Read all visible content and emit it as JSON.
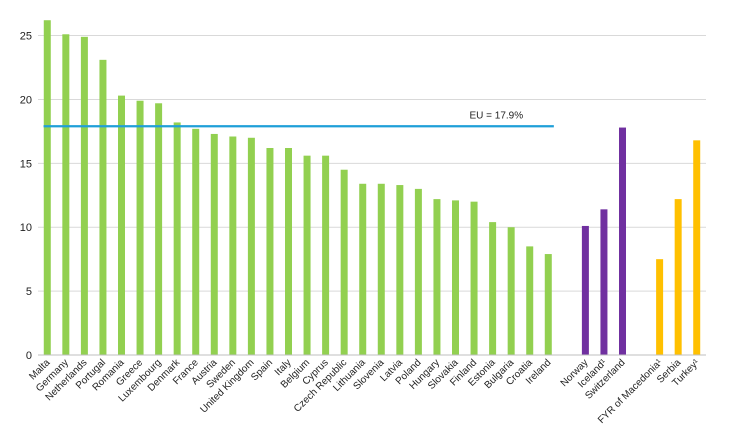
{
  "chart_data": {
    "type": "bar",
    "title": "",
    "xlabel": "",
    "ylabel": "",
    "ylim": [
      0,
      27
    ],
    "yticks": [
      0,
      5,
      10,
      15,
      20,
      25
    ],
    "grid": true,
    "categories": [
      "Malta",
      "Germany",
      "Netherlands",
      "Portugal",
      "Romania",
      "Greece",
      "Luxembourg",
      "Denmark",
      "France",
      "Austria",
      "Sweden",
      "United Kingdom",
      "Spain",
      "Italy",
      "Belgium",
      "Cyprus",
      "Czech Republic",
      "Lithuania",
      "Slovenia",
      "Latvia",
      "Poland",
      "Hungary",
      "Slovakia",
      "Finland",
      "Estonia",
      "Bulgaria",
      "Croatia",
      "Ireland",
      "",
      "Norway",
      "Iceland¹",
      "Switzerland",
      "",
      "FYR of Macedonia¹",
      "Serbia",
      "Turkey¹"
    ],
    "values": [
      26.2,
      25.1,
      24.9,
      23.1,
      20.3,
      19.9,
      19.7,
      18.2,
      17.7,
      17.3,
      17.1,
      17.0,
      16.2,
      16.2,
      15.6,
      15.6,
      14.5,
      13.4,
      13.4,
      13.3,
      13.0,
      12.2,
      12.1,
      12.0,
      10.4,
      10.0,
      8.5,
      7.9,
      null,
      10.1,
      11.4,
      17.8,
      null,
      7.5,
      12.2,
      16.8
    ],
    "groups": [
      "eu",
      "eu",
      "eu",
      "eu",
      "eu",
      "eu",
      "eu",
      "eu",
      "eu",
      "eu",
      "eu",
      "eu",
      "eu",
      "eu",
      "eu",
      "eu",
      "eu",
      "eu",
      "eu",
      "eu",
      "eu",
      "eu",
      "eu",
      "eu",
      "eu",
      "eu",
      "eu",
      "eu",
      "gap",
      "efta",
      "efta",
      "efta",
      "gap",
      "candidate",
      "candidate",
      "candidate"
    ],
    "colors": {
      "eu": "#92d050",
      "efta": "#7030a0",
      "candidate": "#ffc000",
      "reference_line": "#1f9fd8"
    },
    "reference_line": {
      "value": 17.9,
      "label": "EU = 17.9%"
    }
  }
}
